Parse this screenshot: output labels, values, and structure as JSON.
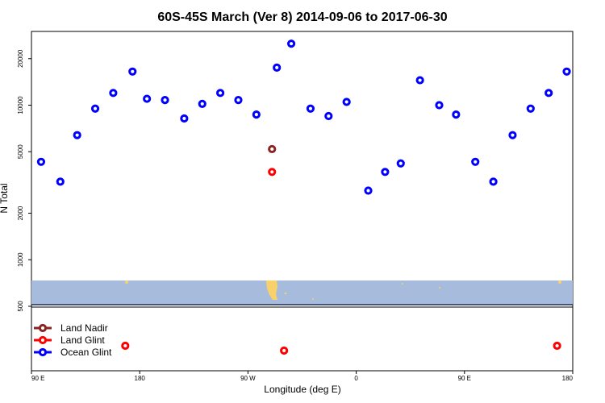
{
  "chart_data": {
    "type": "scatter",
    "title": "60S-45S March (Ver 8)   2014-09-06 to 2017-06-30",
    "xlabel": "Longitude (deg E)",
    "ylabel": "N Total",
    "x_scale": "longitude, 90 E at left to 180 at right",
    "y_scale": "log",
    "xlim": [
      90,
      540
    ],
    "ylim": [
      500,
      30000
    ],
    "x_ticks": [
      {
        "value": 90,
        "label": "90 E"
      },
      {
        "value": 180,
        "label": "180"
      },
      {
        "value": 270,
        "label": "90 W"
      },
      {
        "value": 360,
        "label": "0"
      },
      {
        "value": 450,
        "label": "90 E"
      },
      {
        "value": 540,
        "label": "180"
      }
    ],
    "y_ticks": [
      {
        "value": 500,
        "label": "500"
      },
      {
        "value": 1000,
        "label": "1000"
      },
      {
        "value": 2000,
        "label": "2000"
      },
      {
        "value": 5000,
        "label": "5000"
      },
      {
        "value": 10000,
        "label": "10000"
      },
      {
        "value": 20000,
        "label": "20000"
      }
    ],
    "series": [
      {
        "name": "Land Nadir",
        "color": "#8b2323",
        "x": [
          290
        ],
        "y": [
          5200
        ]
      },
      {
        "name": "Land Glint",
        "color": "#ff0000",
        "x": [
          290,
          168,
          300,
          527
        ],
        "y": [
          3700,
          "below-range",
          "below-range",
          "below-range"
        ]
      },
      {
        "name": "Ocean Glint",
        "color": "#0000ff",
        "x": [
          98,
          114,
          128,
          143,
          158,
          174,
          186,
          201,
          217,
          232,
          247,
          262,
          277,
          294,
          306,
          322,
          337,
          352,
          370,
          384,
          397,
          413,
          429,
          443,
          459,
          474,
          490,
          505,
          520,
          535
        ],
        "y": [
          4300,
          3200,
          6400,
          9500,
          12000,
          16500,
          11000,
          10800,
          8200,
          10200,
          12000,
          10800,
          8700,
          17500,
          25000,
          9500,
          8500,
          10500,
          2800,
          3700,
          4200,
          14500,
          10000,
          8700,
          4300,
          3200,
          6400,
          9500,
          12000,
          16500
        ]
      }
    ],
    "legend_position": "bottom-left",
    "map_strip_colors": {
      "ocean": "#a7bcdc",
      "land": "#f8d16a",
      "coast": "#1d2a5a"
    }
  }
}
